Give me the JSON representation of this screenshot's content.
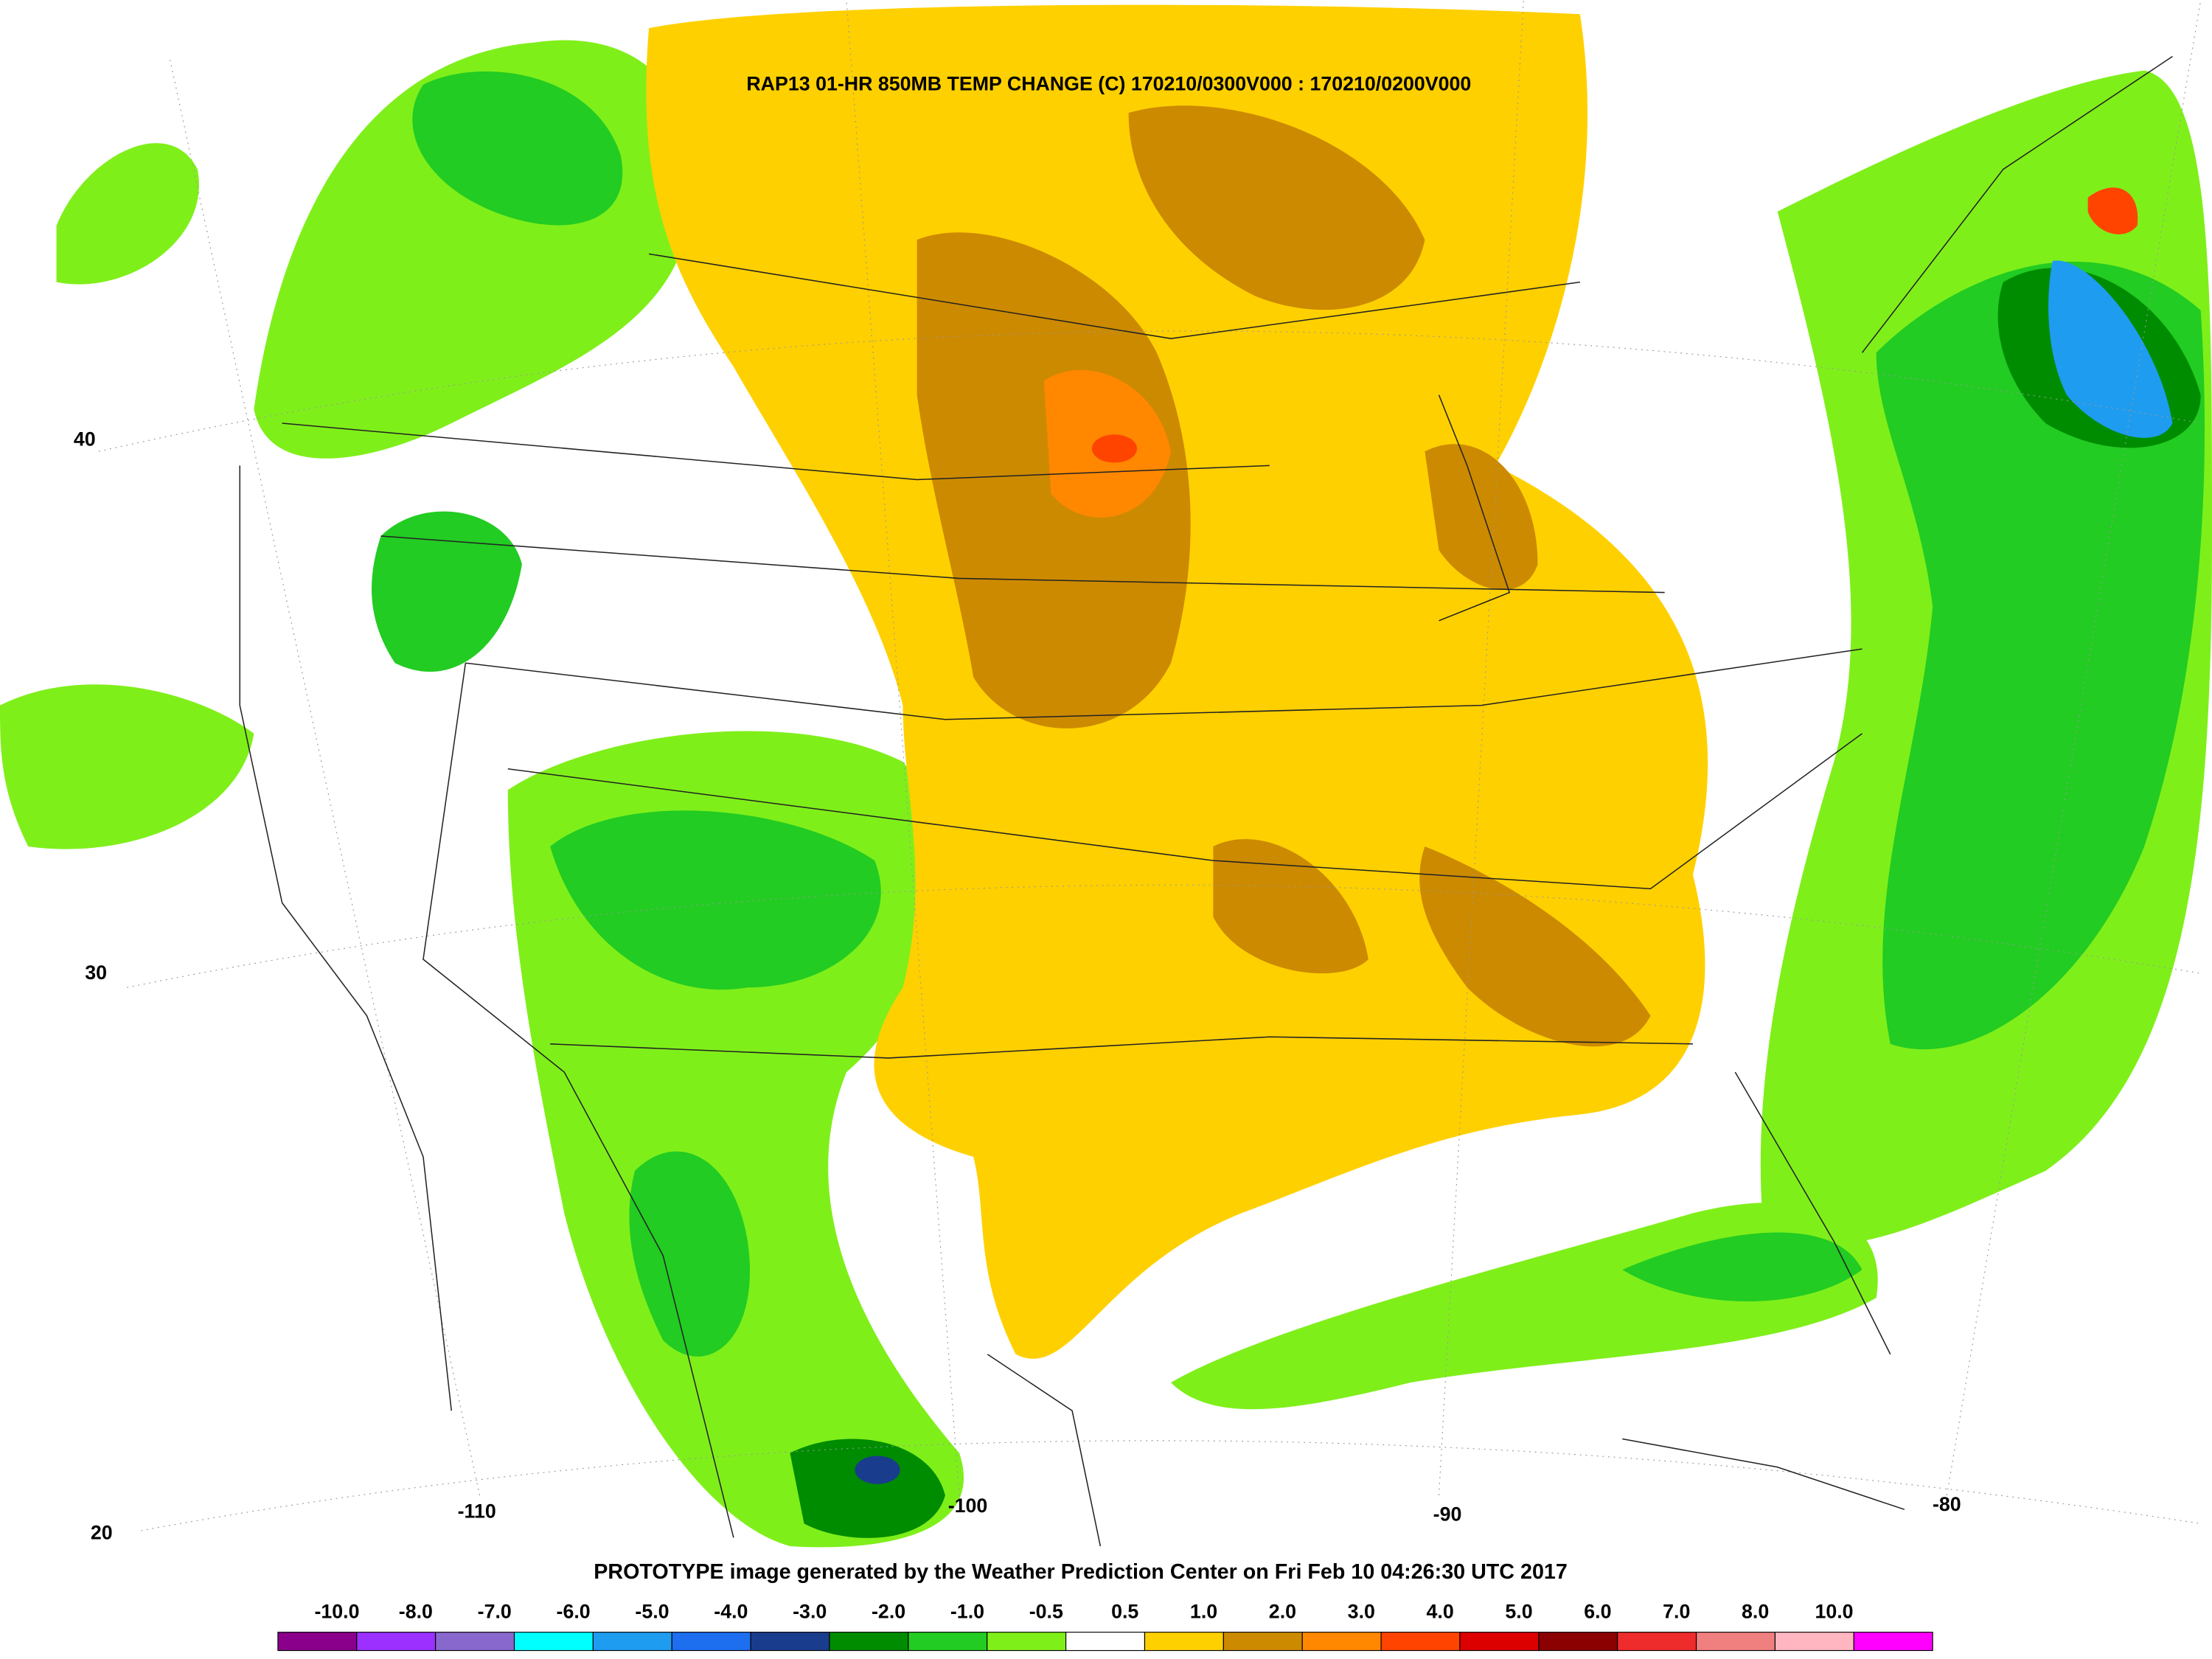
{
  "title": "RAP13 01-HR 850MB TEMP CHANGE (C) 170210/0300V000 : 170210/0200V000",
  "footer": "PROTOTYPE image generated by the Weather Prediction Center on Fri Feb 10 04:26:30 UTC 2017",
  "latitude_labels": [
    "40",
    "30",
    "20"
  ],
  "longitude_labels": [
    "-110",
    "-100",
    "-90",
    "-80"
  ],
  "legend": {
    "labels": [
      "-10.0",
      "-8.0",
      "-7.0",
      "-6.0",
      "-5.0",
      "-4.0",
      "-3.0",
      "-2.0",
      "-1.0",
      "-0.5",
      "0.5",
      "1.0",
      "2.0",
      "3.0",
      "4.0",
      "5.0",
      "6.0",
      "7.0",
      "8.0",
      "10.0"
    ],
    "colors": [
      "#8b008b",
      "#9b30ff",
      "#8968cd",
      "#00ffff",
      "#1e9cf0",
      "#1e6ef0",
      "#1a3c8c",
      "#008c00",
      "#22cc22",
      "#7fef1a",
      "#ffffff",
      "#ffd000",
      "#cc8a00",
      "#ff8800",
      "#ff4400",
      "#dd0000",
      "#8b0000",
      "#ee2c2c",
      "#f08080",
      "#ffb6c1",
      "#ff00ff"
    ]
  }
}
